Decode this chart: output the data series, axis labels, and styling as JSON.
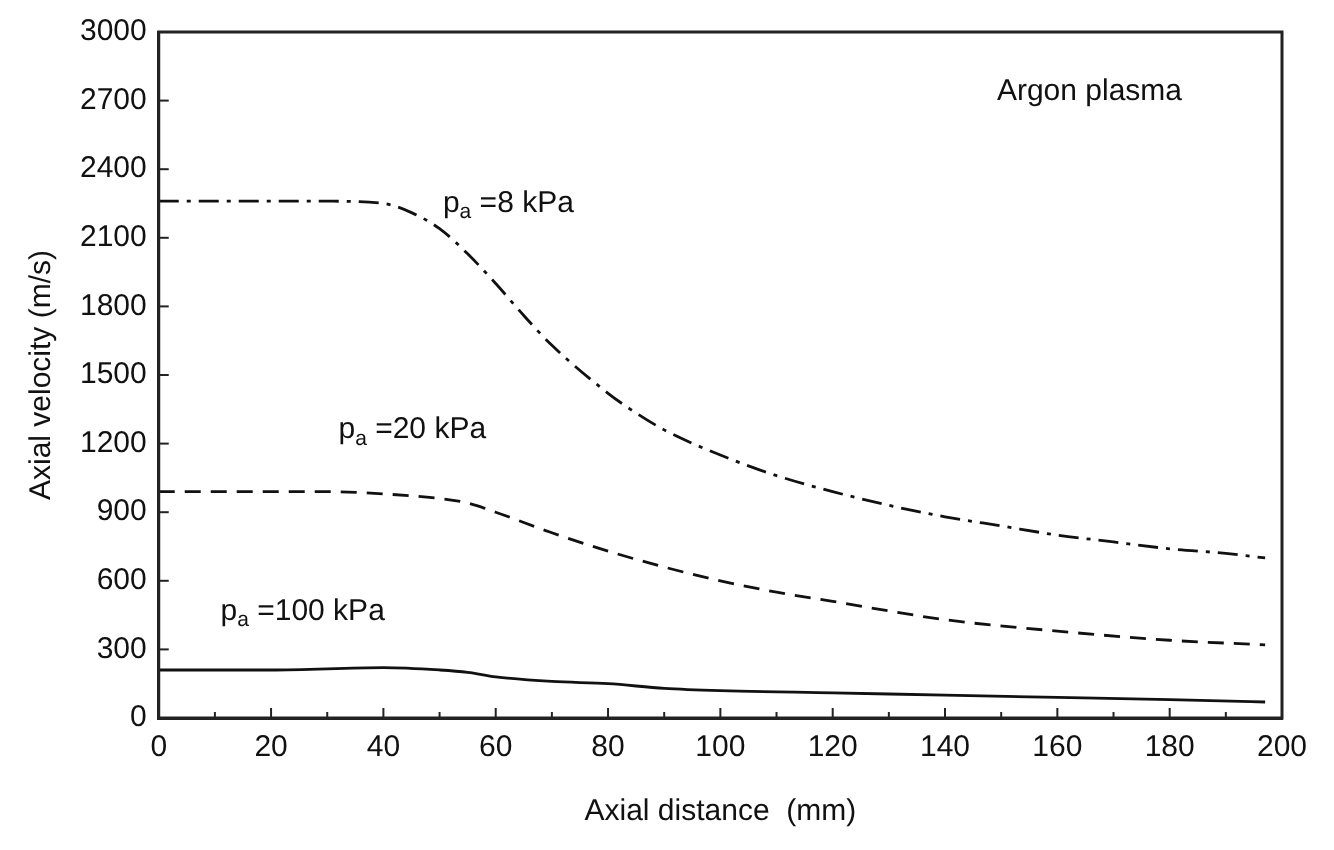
{
  "chart_data": {
    "type": "line",
    "xlabel": "Axial distance  (mm)",
    "ylabel": "Axial velocity (m/s)",
    "xlim": [
      0,
      200
    ],
    "ylim": [
      0,
      3000
    ],
    "xticks": [
      0,
      {
        "value": 10,
        "label": null
      },
      20,
      {
        "value": 30,
        "label": null
      },
      40,
      {
        "value": 50,
        "label": null
      },
      60,
      {
        "value": 70,
        "label": null
      },
      80,
      {
        "value": 90,
        "label": null
      },
      100,
      {
        "value": 110,
        "label": null
      },
      120,
      {
        "value": 130,
        "label": null
      },
      140,
      {
        "value": 150,
        "label": null
      },
      160,
      {
        "value": 170,
        "label": null
      },
      180,
      {
        "value": 190,
        "label": null
      },
      200
    ],
    "yticks": [
      0,
      300,
      600,
      900,
      1200,
      1500,
      1800,
      2100,
      2400,
      2700,
      3000
    ],
    "grid": false,
    "legend": false,
    "marker": "none",
    "series": [
      {
        "name": "p$_{a}$ =8 kPa",
        "color": "#111111",
        "line_style": "dashdot",
        "x": [
          0,
          10,
          20,
          30,
          40,
          45,
          50,
          55,
          60,
          65,
          70,
          80,
          84,
          90,
          100,
          110,
          120,
          130,
          140,
          150,
          160,
          170,
          180,
          190,
          197
        ],
        "values": [
          2260,
          2260,
          2260,
          2260,
          2250,
          2210,
          2140,
          2030,
          1900,
          1760,
          1630,
          1420,
          1350,
          1260,
          1150,
          1060,
          990,
          930,
          880,
          840,
          800,
          770,
          740,
          720,
          700
        ]
      },
      {
        "name": "p$_{a}$ =20 kPa",
        "color": "#111111",
        "line_style": "dashed",
        "x": [
          0,
          10,
          20,
          30,
          40,
          50,
          55,
          60,
          70,
          80,
          90,
          100,
          110,
          120,
          140,
          160,
          180,
          197
        ],
        "values": [
          990,
          990,
          990,
          990,
          980,
          960,
          940,
          900,
          810,
          730,
          660,
          600,
          550,
          510,
          430,
          380,
          340,
          320
        ]
      },
      {
        "name": "p$_{a}$ =100 kPa",
        "color": "#111111",
        "line_style": "solid",
        "x": [
          0,
          20,
          40,
          50,
          55,
          60,
          70,
          80,
          90,
          100,
          120,
          140,
          160,
          180,
          197
        ],
        "values": [
          210,
          210,
          220,
          210,
          200,
          180,
          160,
          150,
          130,
          120,
          110,
          100,
          90,
          80,
          70
        ]
      }
    ],
    "annotations": [
      "Argon plasma"
    ]
  }
}
